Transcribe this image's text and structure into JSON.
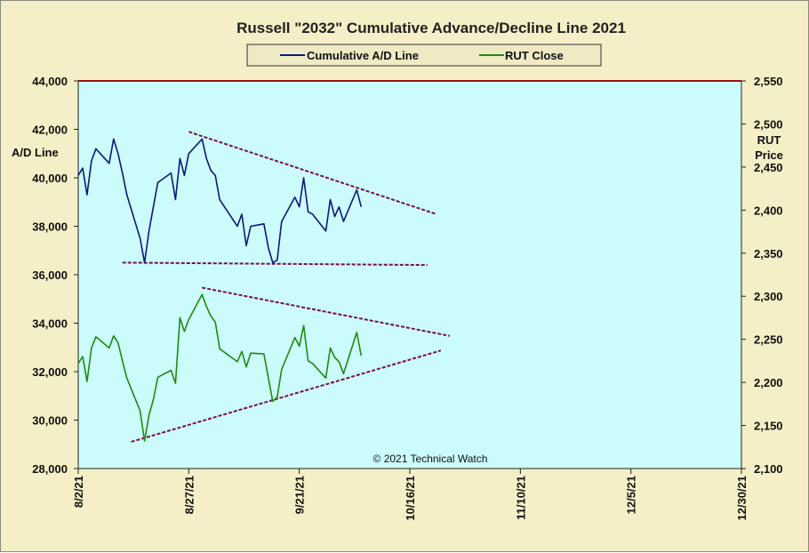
{
  "chart_data": {
    "type": "line",
    "title": "Russell \"2032\" Cumulative Advance/Decline Line 2021",
    "copyright": "© 2021 Technical Watch",
    "ylabel_left": "A/D Line",
    "ylabel_right": [
      "RUT",
      "Price"
    ],
    "ylim_left": [
      28000,
      44000
    ],
    "ylim_right": [
      2100,
      2550
    ],
    "y_ticks_left": [
      "28,000",
      "30,000",
      "32,000",
      "34,000",
      "36,000",
      "38,000",
      "40,000",
      "42,000",
      "44,000"
    ],
    "y_ticks_right": [
      "2,100",
      "2,150",
      "2,200",
      "2,250",
      "2,300",
      "2,350",
      "2,400",
      "2,450",
      "2,500",
      "2,550"
    ],
    "x_ticks": [
      "8/2/21",
      "8/27/21",
      "9/21/21",
      "10/16/21",
      "11/10/21",
      "12/5/21",
      "12/30/21"
    ],
    "xlim": [
      "2021-08-02",
      "2021-12-30"
    ],
    "legend": [
      "Cumulative A/D Line",
      "RUT Close"
    ],
    "colors": {
      "ad": "#0b1a7a",
      "rut": "#1f8a12",
      "trend": "#7a1240",
      "plot_bg": "#ccfbfb",
      "top_line": "#9a1010"
    },
    "series": [
      {
        "name": "Cumulative A/D Line",
        "axis": "left",
        "x": [
          "2021-08-02",
          "2021-08-03",
          "2021-08-04",
          "2021-08-05",
          "2021-08-06",
          "2021-08-09",
          "2021-08-10",
          "2021-08-11",
          "2021-08-12",
          "2021-08-13",
          "2021-08-16",
          "2021-08-17",
          "2021-08-18",
          "2021-08-19",
          "2021-08-20",
          "2021-08-23",
          "2021-08-24",
          "2021-08-25",
          "2021-08-26",
          "2021-08-27",
          "2021-08-30",
          "2021-08-31",
          "2021-09-01",
          "2021-09-02",
          "2021-09-03",
          "2021-09-07",
          "2021-09-08",
          "2021-09-09",
          "2021-09-10",
          "2021-09-13",
          "2021-09-14",
          "2021-09-15",
          "2021-09-16",
          "2021-09-17",
          "2021-09-20",
          "2021-09-21",
          "2021-09-22",
          "2021-09-23",
          "2021-09-24",
          "2021-09-27",
          "2021-09-28",
          "2021-09-29",
          "2021-09-30",
          "2021-10-01",
          "2021-10-04",
          "2021-10-05",
          "2021-10-06",
          "2021-10-07",
          "2021-10-08",
          "2021-10-11",
          "2021-10-12"
        ],
        "values": [
          40100,
          40400,
          39300,
          40700,
          41200,
          40600,
          41600,
          41000,
          40200,
          39300,
          37500,
          36500,
          37800,
          38800,
          39800,
          40200,
          39100,
          40800,
          40100,
          41000,
          41600,
          40800,
          40300,
          40100,
          39100,
          38000,
          38500,
          37200,
          38000,
          38100,
          37100,
          36500,
          36600,
          38200,
          39200,
          38800,
          40000,
          38600,
          38500,
          37800,
          39100,
          38400,
          38800,
          38200,
          39500,
          38800,
          null,
          null,
          null,
          null,
          null
        ]
      },
      {
        "name": "RUT Close",
        "axis": "right",
        "x": [
          "2021-08-02",
          "2021-08-03",
          "2021-08-04",
          "2021-08-05",
          "2021-08-06",
          "2021-08-09",
          "2021-08-10",
          "2021-08-11",
          "2021-08-12",
          "2021-08-13",
          "2021-08-16",
          "2021-08-17",
          "2021-08-18",
          "2021-08-19",
          "2021-08-20",
          "2021-08-23",
          "2021-08-24",
          "2021-08-25",
          "2021-08-26",
          "2021-08-27",
          "2021-08-30",
          "2021-08-31",
          "2021-09-01",
          "2021-09-02",
          "2021-09-03",
          "2021-09-07",
          "2021-09-08",
          "2021-09-09",
          "2021-09-10",
          "2021-09-13",
          "2021-09-14",
          "2021-09-15",
          "2021-09-16",
          "2021-09-17",
          "2021-09-20",
          "2021-09-21",
          "2021-09-22",
          "2021-09-23",
          "2021-09-24",
          "2021-09-27",
          "2021-09-28",
          "2021-09-29",
          "2021-09-30",
          "2021-10-01",
          "2021-10-04",
          "2021-10-05",
          "2021-10-06",
          "2021-10-07",
          "2021-10-08",
          "2021-10-11",
          "2021-10-12"
        ],
        "values": [
          2222,
          2230,
          2201,
          2240,
          2253,
          2240,
          2254,
          2246,
          2225,
          2205,
          2167,
          2132,
          2162,
          2180,
          2206,
          2214,
          2199,
          2275,
          2259,
          2273,
          2302,
          2288,
          2277,
          2270,
          2239,
          2224,
          2236,
          2218,
          2234,
          2233,
          2205,
          2178,
          2183,
          2215,
          2252,
          2242,
          2266,
          2225,
          2222,
          2205,
          2240,
          2229,
          2224,
          2210,
          2258,
          2231,
          null,
          null,
          null,
          null,
          null
        ]
      }
    ],
    "trendlines": [
      {
        "axis": "left",
        "points": [
          [
            "2021-08-27",
            41900
          ],
          [
            "2021-10-22",
            38500
          ]
        ]
      },
      {
        "axis": "left",
        "points": [
          [
            "2021-08-12",
            36500
          ],
          [
            "2021-10-20",
            36400
          ]
        ]
      },
      {
        "axis": "right",
        "points": [
          [
            "2021-08-30",
            2310
          ],
          [
            "2021-10-25",
            2254
          ]
        ]
      },
      {
        "axis": "right",
        "points": [
          [
            "2021-08-14",
            2131
          ],
          [
            "2021-10-23",
            2237
          ]
        ]
      }
    ]
  }
}
